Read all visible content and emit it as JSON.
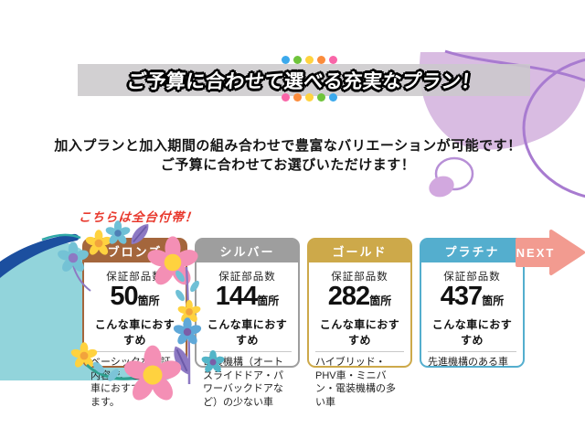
{
  "banner": {
    "title": "ご予算に合わせて選べる充実なプラン！",
    "bg_color": "#cbc9cb",
    "dots_top": [
      "#3BA9EC",
      "#6FC43B",
      "#FFD33F",
      "#FB8C3C",
      "#F966A8"
    ],
    "dots_bottom": [
      "#F966A8",
      "#FB8C3C",
      "#FFD33F",
      "#6FC43B",
      "#3BA9EC"
    ]
  },
  "intro": {
    "line1": "加入プランと加入期間の組み合わせで豊富なバリエーションが可能です！",
    "line2": "ご予算に合わせてお選びいただけます！"
  },
  "note": {
    "text": "こちらは全台付帯！",
    "color": "#E8382C"
  },
  "next": {
    "label": "NEXT",
    "color": "#F29B90"
  },
  "shared": {
    "parts_label": "保証部品数",
    "unit": "箇所",
    "reco_label": "こんな車におすすめ"
  },
  "cards": [
    {
      "name": "ブロンズ",
      "color": "#A4663C",
      "count": "50",
      "description": "ベーシックな保証内容で、全てのお車におすすめできます。"
    },
    {
      "name": "シルバー",
      "color": "#9E9E9E",
      "count": "144",
      "description": "電装機構（オートスライドドア・パワーバックドアなど）の少ない車"
    },
    {
      "name": "ゴールド",
      "color": "#CDA94A",
      "count": "282",
      "description": "ハイブリッド・PHV車・ミニバン・電装機構の多い車"
    },
    {
      "name": "プラチナ",
      "color": "#54AECE",
      "count": "437",
      "description": "先進機構のある車"
    }
  ],
  "decoration_colors": {
    "wave_teal": "#92D4DB",
    "stripe_navy": "#1C4F9F",
    "blob_lavender": "#D9BCE2",
    "swirl_purple": "#A87BD0",
    "flower_pink": "#F48FB5",
    "flower_yellow": "#FFD23F",
    "flower_teal": "#6FC0D6",
    "leaf_purple": "#8D79C3"
  }
}
